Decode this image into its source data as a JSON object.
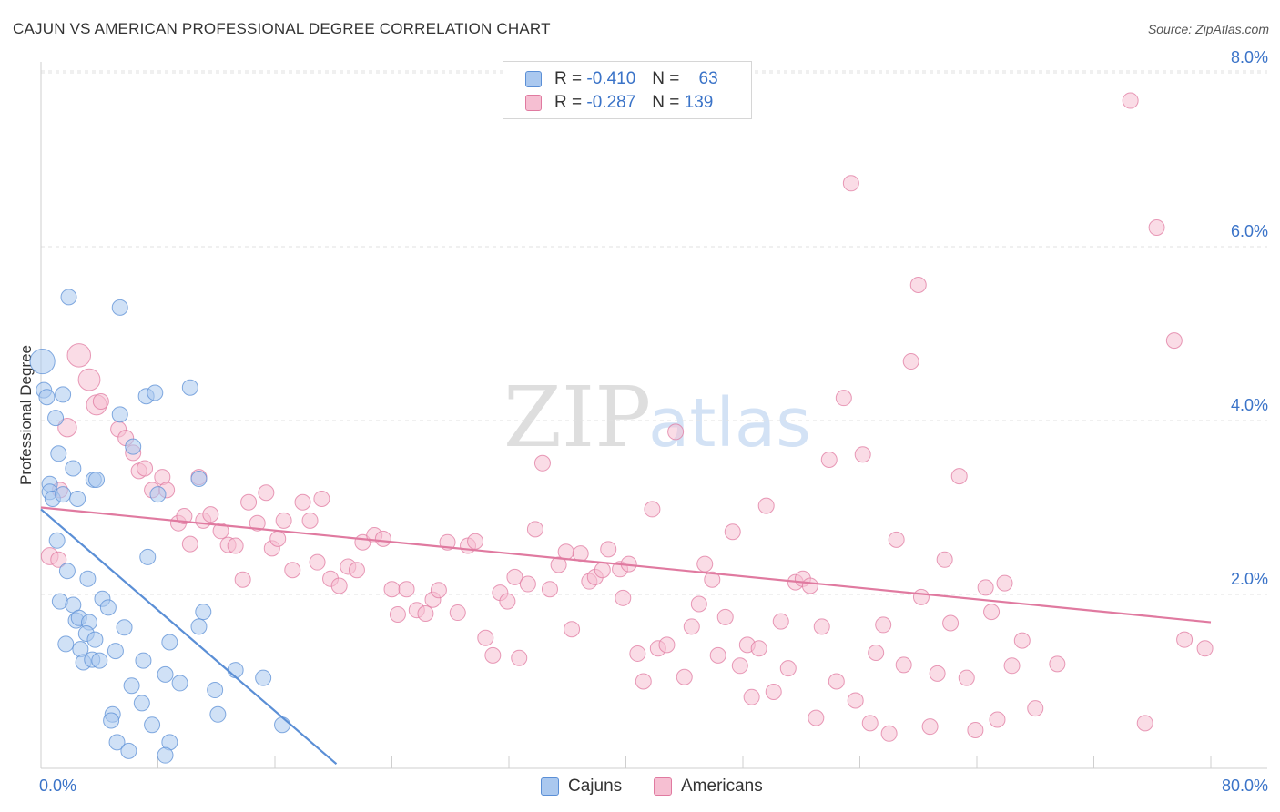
{
  "chart_data": {
    "type": "scatter",
    "title": "CAJUN VS AMERICAN PROFESSIONAL DEGREE CORRELATION CHART",
    "source": "Source: ZipAtlas.com",
    "xlabel": "",
    "ylabel": "Professional Degree",
    "xlim": [
      0,
      80
    ],
    "ylim": [
      0,
      8.2
    ],
    "x_tick_labels": [
      "0.0%",
      "80.0%"
    ],
    "y_ticks": [
      2,
      4,
      6,
      8
    ],
    "y_tick_labels": [
      "2.0%",
      "4.0%",
      "6.0%",
      "8.0%"
    ],
    "grid": true,
    "watermark": "ZIPatlas",
    "legend_stats": [
      {
        "r_label": "R =",
        "r_value": "-0.410",
        "n_label": "N =",
        "n_value": "63"
      },
      {
        "r_label": "R =",
        "r_value": "-0.287",
        "n_label": "N =",
        "n_value": "139"
      }
    ],
    "series": [
      {
        "name": "Cajuns",
        "color": "#5b8fd6",
        "fill": "#aac8ef",
        "trend": {
          "x1": 0,
          "y1": 2.98,
          "x2": 20.2,
          "y2": 0.05
        },
        "points": [
          [
            0.1,
            4.68,
            1.6
          ],
          [
            0.2,
            4.35,
            1
          ],
          [
            0.4,
            4.27,
            1
          ],
          [
            1.0,
            4.03,
            1
          ],
          [
            1.5,
            4.3,
            1
          ],
          [
            1.9,
            5.42,
            1
          ],
          [
            5.4,
            5.3,
            1
          ],
          [
            5.4,
            4.07,
            1
          ],
          [
            6.3,
            3.7,
            1
          ],
          [
            7.2,
            4.28,
            1
          ],
          [
            7.8,
            4.32,
            1
          ],
          [
            10.2,
            4.38,
            1
          ],
          [
            1.2,
            3.62,
            1
          ],
          [
            2.2,
            3.45,
            1
          ],
          [
            0.6,
            3.27,
            1
          ],
          [
            0.6,
            3.18,
            1
          ],
          [
            0.8,
            3.1,
            1
          ],
          [
            1.5,
            3.15,
            1
          ],
          [
            2.5,
            3.1,
            1
          ],
          [
            3.6,
            3.32,
            1
          ],
          [
            3.8,
            3.32,
            1
          ],
          [
            8.0,
            3.15,
            1
          ],
          [
            10.8,
            3.33,
            1
          ],
          [
            1.1,
            2.62,
            1
          ],
          [
            7.3,
            2.43,
            1
          ],
          [
            1.8,
            2.27,
            1
          ],
          [
            3.2,
            2.18,
            1
          ],
          [
            1.3,
            1.92,
            1
          ],
          [
            2.2,
            1.88,
            1
          ],
          [
            4.2,
            1.95,
            1
          ],
          [
            4.6,
            1.85,
            1
          ],
          [
            2.4,
            1.7,
            1
          ],
          [
            2.6,
            1.73,
            1
          ],
          [
            3.3,
            1.68,
            1
          ],
          [
            5.7,
            1.62,
            1
          ],
          [
            11.1,
            1.8,
            1
          ],
          [
            10.8,
            1.63,
            1
          ],
          [
            1.7,
            1.43,
            1
          ],
          [
            3.1,
            1.55,
            1
          ],
          [
            3.7,
            1.48,
            1
          ],
          [
            2.7,
            1.37,
            1
          ],
          [
            5.1,
            1.35,
            1
          ],
          [
            8.8,
            1.45,
            1
          ],
          [
            2.9,
            1.22,
            1
          ],
          [
            3.5,
            1.25,
            1
          ],
          [
            4.0,
            1.24,
            1
          ],
          [
            7.0,
            1.24,
            1
          ],
          [
            8.5,
            1.08,
            1
          ],
          [
            6.2,
            0.95,
            1
          ],
          [
            9.5,
            0.98,
            1
          ],
          [
            13.3,
            1.13,
            1
          ],
          [
            15.2,
            1.04,
            1
          ],
          [
            11.9,
            0.9,
            1
          ],
          [
            6.9,
            0.75,
            1
          ],
          [
            4.9,
            0.62,
            1
          ],
          [
            4.8,
            0.55,
            1
          ],
          [
            7.6,
            0.5,
            1
          ],
          [
            12.1,
            0.62,
            1
          ],
          [
            16.5,
            0.5,
            1
          ],
          [
            5.2,
            0.3,
            1
          ],
          [
            8.8,
            0.3,
            1
          ],
          [
            6.0,
            0.2,
            1
          ],
          [
            8.5,
            0.15,
            1
          ]
        ]
      },
      {
        "name": "Americans",
        "color": "#e07aa0",
        "fill": "#f6bfd2",
        "trend": {
          "x1": 0,
          "y1": 3.0,
          "x2": 80,
          "y2": 1.68
        },
        "points": [
          [
            0.6,
            2.44,
            1.1
          ],
          [
            1.2,
            2.4,
            1
          ],
          [
            1.3,
            3.2,
            1
          ],
          [
            1.8,
            3.92,
            1.2
          ],
          [
            2.6,
            4.75,
            1.5
          ],
          [
            3.3,
            4.47,
            1.4
          ],
          [
            3.8,
            4.18,
            1.3
          ],
          [
            4.1,
            4.22,
            1
          ],
          [
            5.3,
            3.9,
            1
          ],
          [
            5.8,
            3.8,
            1
          ],
          [
            6.3,
            3.63,
            1
          ],
          [
            6.7,
            3.42,
            1
          ],
          [
            7.1,
            3.45,
            1
          ],
          [
            7.6,
            3.2,
            1
          ],
          [
            8.3,
            3.35,
            1
          ],
          [
            8.6,
            3.2,
            1
          ],
          [
            9.4,
            2.82,
            1
          ],
          [
            9.8,
            2.9,
            1
          ],
          [
            10.2,
            2.58,
            1
          ],
          [
            10.8,
            3.35,
            1
          ],
          [
            11.1,
            2.85,
            1
          ],
          [
            11.6,
            2.92,
            1
          ],
          [
            12.3,
            2.73,
            1
          ],
          [
            12.8,
            2.57,
            1
          ],
          [
            13.3,
            2.56,
            1
          ],
          [
            13.8,
            2.17,
            1
          ],
          [
            14.2,
            3.06,
            1
          ],
          [
            14.8,
            2.82,
            1
          ],
          [
            15.4,
            3.17,
            1
          ],
          [
            15.8,
            2.53,
            1
          ],
          [
            16.2,
            2.64,
            1
          ],
          [
            16.6,
            2.85,
            1
          ],
          [
            17.2,
            2.28,
            1
          ],
          [
            17.9,
            3.06,
            1
          ],
          [
            18.4,
            2.85,
            1
          ],
          [
            18.9,
            2.37,
            1
          ],
          [
            19.2,
            3.1,
            1
          ],
          [
            19.8,
            2.18,
            1
          ],
          [
            20.4,
            2.1,
            1
          ],
          [
            21.0,
            2.32,
            1
          ],
          [
            21.6,
            2.28,
            1
          ],
          [
            22.0,
            2.6,
            1
          ],
          [
            22.8,
            2.68,
            1
          ],
          [
            23.4,
            2.64,
            1
          ],
          [
            24.0,
            2.06,
            1
          ],
          [
            24.4,
            1.77,
            1
          ],
          [
            25.0,
            2.06,
            1
          ],
          [
            25.7,
            1.82,
            1
          ],
          [
            26.3,
            1.78,
            1
          ],
          [
            26.8,
            1.94,
            1
          ],
          [
            27.2,
            2.05,
            1
          ],
          [
            27.8,
            2.6,
            1
          ],
          [
            28.5,
            1.79,
            1
          ],
          [
            29.2,
            2.56,
            1
          ],
          [
            29.7,
            2.61,
            1
          ],
          [
            30.4,
            1.5,
            1
          ],
          [
            30.9,
            1.3,
            1
          ],
          [
            31.4,
            2.02,
            1
          ],
          [
            31.9,
            1.92,
            1
          ],
          [
            32.4,
            2.2,
            1
          ],
          [
            32.7,
            1.27,
            1
          ],
          [
            33.3,
            2.12,
            1
          ],
          [
            33.8,
            2.75,
            1
          ],
          [
            34.3,
            3.51,
            1
          ],
          [
            34.8,
            2.06,
            1
          ],
          [
            35.4,
            2.34,
            1
          ],
          [
            35.9,
            2.49,
            1
          ],
          [
            36.3,
            1.6,
            1
          ],
          [
            36.9,
            2.47,
            1
          ],
          [
            37.5,
            2.15,
            1
          ],
          [
            37.9,
            2.2,
            1
          ],
          [
            38.4,
            2.28,
            1
          ],
          [
            38.8,
            2.52,
            1
          ],
          [
            39.6,
            2.29,
            1
          ],
          [
            39.8,
            1.96,
            1
          ],
          [
            40.2,
            2.35,
            1
          ],
          [
            40.8,
            1.32,
            1
          ],
          [
            41.2,
            1.0,
            1
          ],
          [
            41.8,
            2.98,
            1
          ],
          [
            42.2,
            1.38,
            1
          ],
          [
            42.8,
            1.42,
            1
          ],
          [
            43.4,
            3.87,
            1
          ],
          [
            44.0,
            1.05,
            1
          ],
          [
            44.5,
            1.63,
            1
          ],
          [
            45.0,
            1.89,
            1
          ],
          [
            45.4,
            2.35,
            1
          ],
          [
            45.9,
            2.17,
            1
          ],
          [
            46.3,
            1.3,
            1
          ],
          [
            46.8,
            1.74,
            1
          ],
          [
            47.3,
            2.72,
            1
          ],
          [
            47.8,
            1.18,
            1
          ],
          [
            48.3,
            1.42,
            1
          ],
          [
            48.6,
            0.82,
            1
          ],
          [
            49.1,
            1.38,
            1
          ],
          [
            49.6,
            3.02,
            1
          ],
          [
            50.1,
            0.88,
            1
          ],
          [
            50.6,
            1.69,
            1
          ],
          [
            51.1,
            1.15,
            1
          ],
          [
            51.6,
            2.14,
            1
          ],
          [
            52.1,
            2.18,
            1
          ],
          [
            52.6,
            2.1,
            1
          ],
          [
            53.0,
            0.58,
            1
          ],
          [
            53.4,
            1.63,
            1
          ],
          [
            53.9,
            3.55,
            1
          ],
          [
            54.4,
            1.0,
            1
          ],
          [
            54.9,
            4.26,
            1
          ],
          [
            55.4,
            6.73,
            1
          ],
          [
            55.7,
            0.78,
            1
          ],
          [
            56.2,
            3.61,
            1
          ],
          [
            56.7,
            0.52,
            1
          ],
          [
            57.1,
            1.33,
            1
          ],
          [
            57.6,
            1.65,
            1
          ],
          [
            58.0,
            0.4,
            1
          ],
          [
            58.5,
            2.63,
            1
          ],
          [
            59.0,
            1.19,
            1
          ],
          [
            59.5,
            4.68,
            1
          ],
          [
            60.0,
            5.56,
            1
          ],
          [
            60.2,
            1.97,
            1
          ],
          [
            60.8,
            0.48,
            1
          ],
          [
            61.3,
            1.09,
            1
          ],
          [
            61.8,
            2.4,
            1
          ],
          [
            62.2,
            1.67,
            1
          ],
          [
            62.8,
            3.36,
            1
          ],
          [
            63.3,
            1.04,
            1
          ],
          [
            63.9,
            0.44,
            1
          ],
          [
            64.6,
            2.08,
            1
          ],
          [
            65.0,
            1.8,
            1
          ],
          [
            65.4,
            0.56,
            1
          ],
          [
            65.9,
            2.13,
            1
          ],
          [
            66.4,
            1.18,
            1
          ],
          [
            67.1,
            1.47,
            1
          ],
          [
            68.0,
            0.69,
            1
          ],
          [
            69.5,
            1.2,
            1
          ],
          [
            74.5,
            7.68,
            1
          ],
          [
            75.5,
            0.52,
            1
          ],
          [
            76.3,
            6.22,
            1
          ],
          [
            77.5,
            4.92,
            1
          ],
          [
            78.2,
            1.48,
            1
          ],
          [
            79.6,
            1.38,
            1
          ]
        ]
      }
    ]
  }
}
